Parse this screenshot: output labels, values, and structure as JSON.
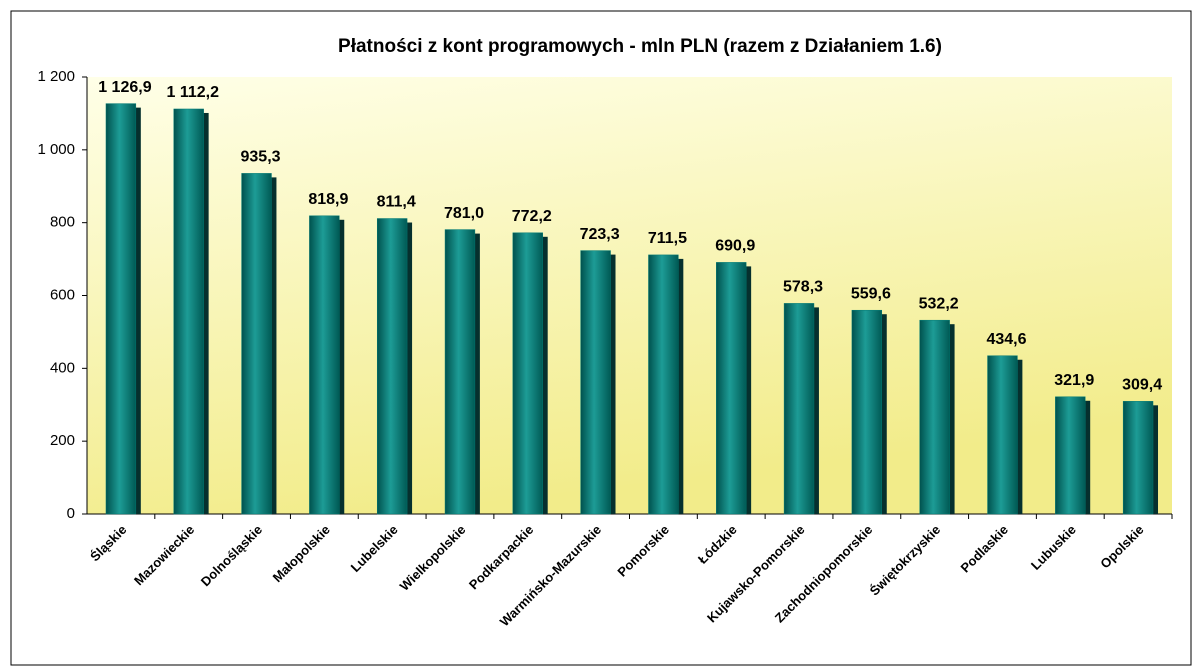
{
  "chart_data": {
    "type": "bar",
    "title": "Płatności z kont programowych - mln PLN (razem z Działaniem 1.6)",
    "categories": [
      "Śląskie",
      "Mazowieckie",
      "Dolnośląskie",
      "Małopolskie",
      "Lubelskie",
      "Wielkopolskie",
      "Podkarpackie",
      "Warmińsko-Mazurskie",
      "Pomorskie",
      "Łódzkie",
      "Kujawsko-Pomorskie",
      "Zachodniopomorskie",
      "Świętokrzyskie",
      "Podlaskie",
      "Lubuskie",
      "Opolskie"
    ],
    "values": [
      1126.9,
      1112.2,
      935.3,
      818.9,
      811.4,
      781.0,
      772.2,
      723.3,
      711.5,
      690.9,
      578.3,
      559.6,
      532.2,
      434.6,
      321.9,
      309.4
    ],
    "value_labels": [
      "1 126,9",
      "1 112,2",
      "935,3",
      "818,9",
      "811,4",
      "781,0",
      "772,2",
      "723,3",
      "711,5",
      "690,9",
      "578,3",
      "559,6",
      "532,2",
      "434,6",
      "321,9",
      "309,4"
    ],
    "color": "#007a74",
    "ylim": [
      0,
      1200
    ],
    "yticks": [
      0,
      200,
      400,
      600,
      800,
      {
        "value": 1000,
        "label": "1 000"
      },
      {
        "value": 1200,
        "label": "1 200"
      }
    ],
    "grid": false
  }
}
